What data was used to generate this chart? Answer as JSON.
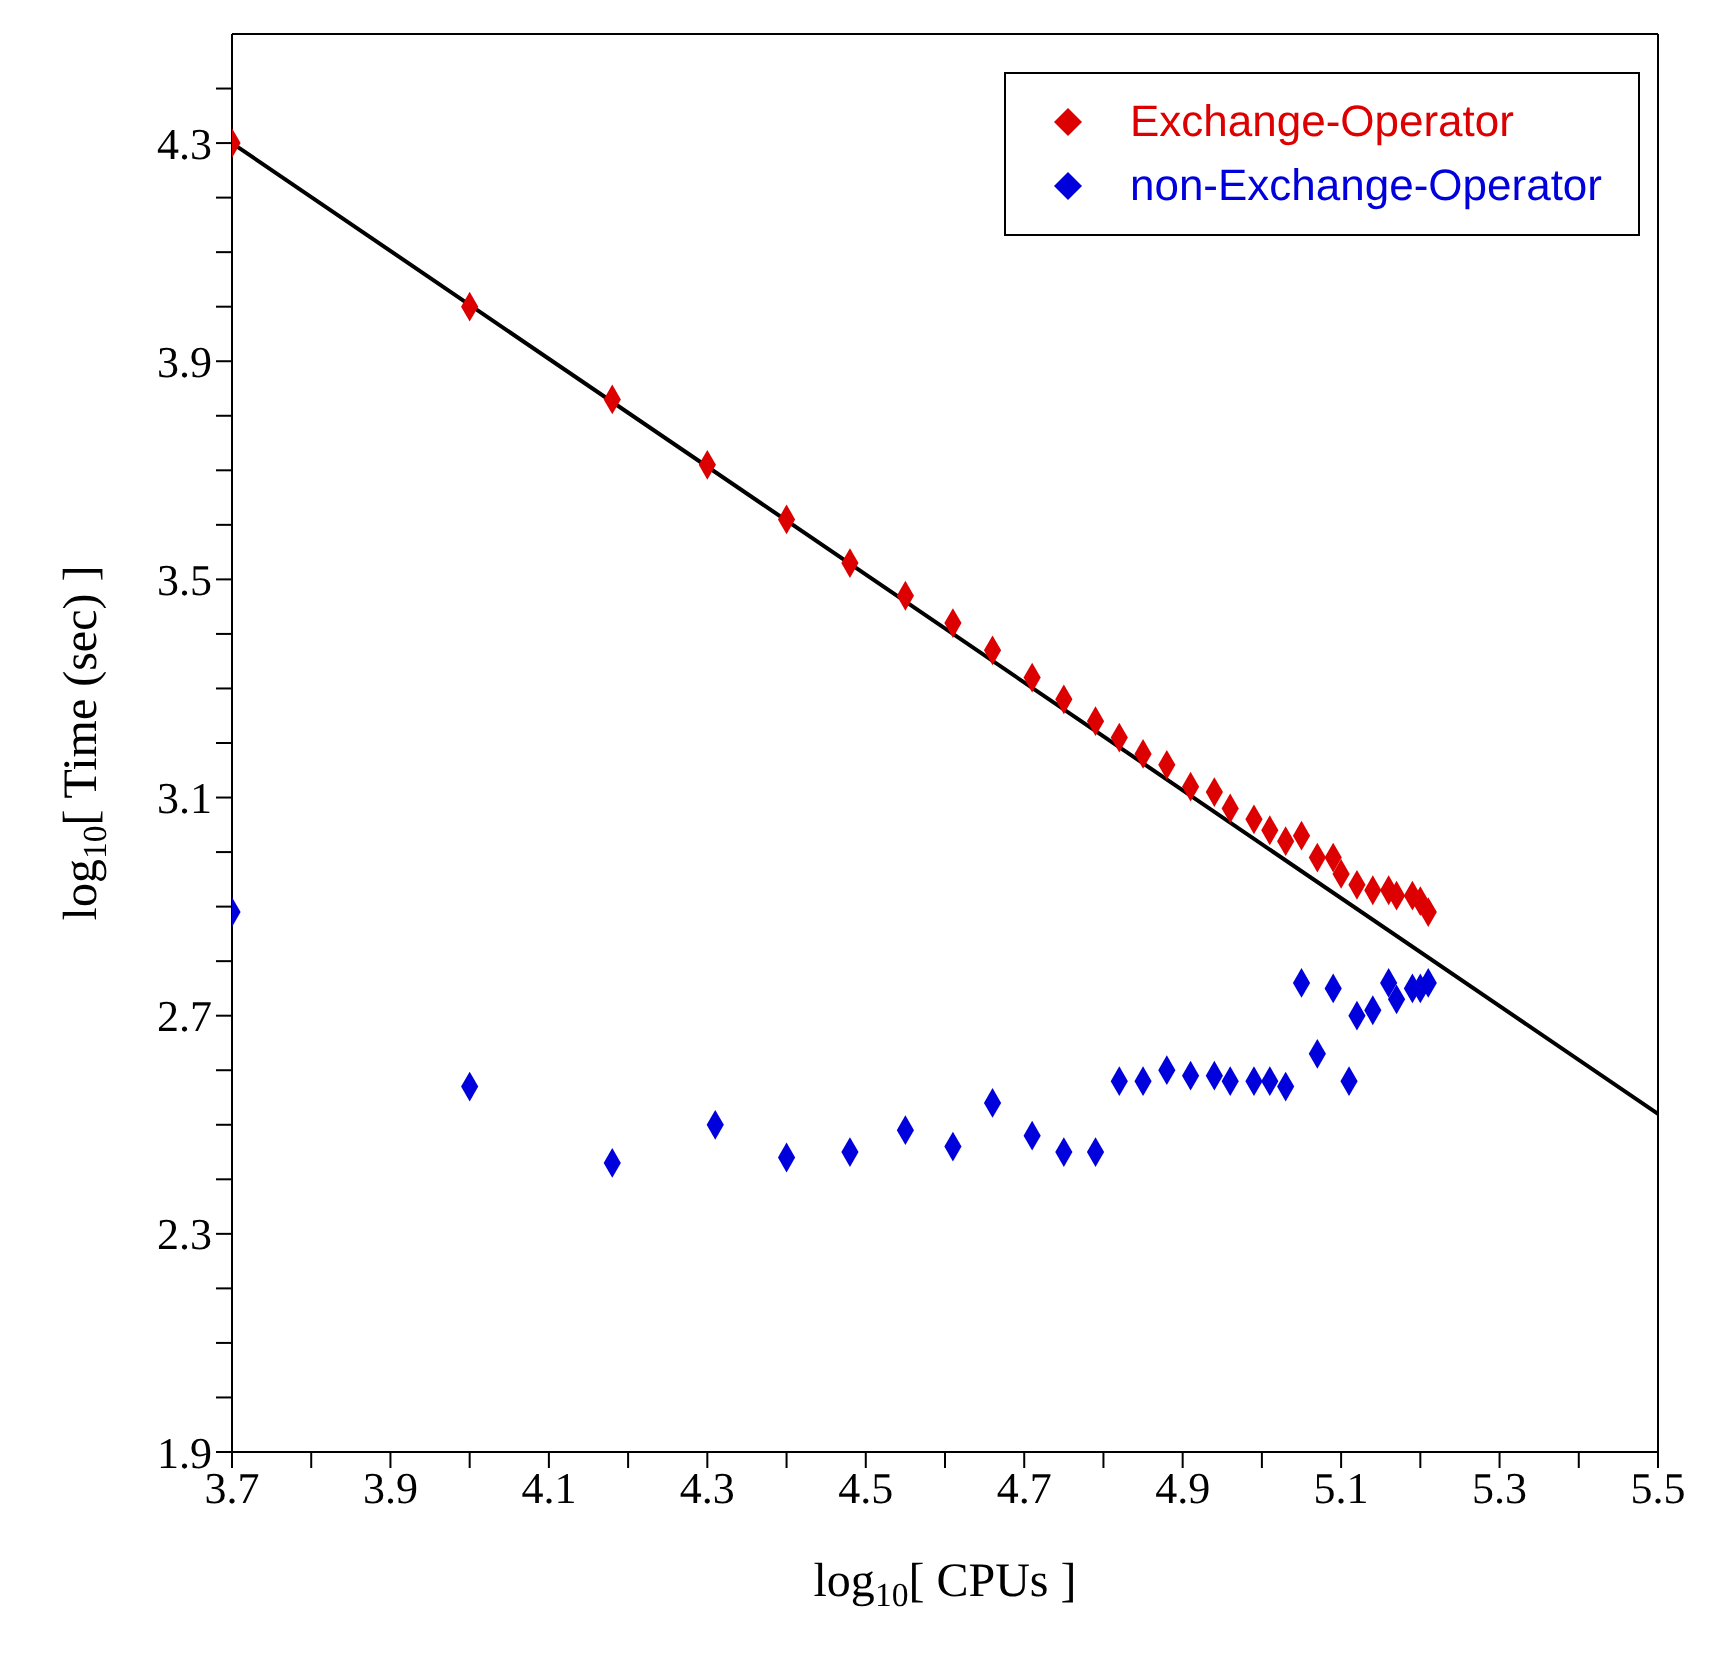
{
  "chart_data": {
    "type": "scatter",
    "xlabel": "log$_{10}$[ CPUs ]",
    "ylabel": "log$_{10}$[ Time (sec) ]",
    "xlim": [
      3.7,
      5.5
    ],
    "ylim": [
      1.9,
      4.5
    ],
    "xticks": [
      3.7,
      {
        "value": 3.8,
        "label": null
      },
      3.9,
      {
        "value": 4.0,
        "label": null
      },
      4.1,
      {
        "value": 4.2,
        "label": null
      },
      4.3,
      {
        "value": 4.4,
        "label": null
      },
      4.5,
      {
        "value": 4.6,
        "label": null
      },
      4.7,
      {
        "value": 4.8,
        "label": null
      },
      4.9,
      {
        "value": 5.0,
        "label": null
      },
      5.1,
      {
        "value": 5.2,
        "label": null
      },
      5.3,
      {
        "value": 5.4,
        "label": null
      },
      5.5
    ],
    "yticks": [
      1.9,
      {
        "value": 2.0,
        "label": null
      },
      {
        "value": 2.1,
        "label": null
      },
      {
        "value": 2.2,
        "label": null
      },
      2.3,
      {
        "value": 2.4,
        "label": null
      },
      {
        "value": 2.5,
        "label": null
      },
      {
        "value": 2.6,
        "label": null
      },
      2.7,
      {
        "value": 2.8,
        "label": null
      },
      {
        "value": 2.9,
        "label": null
      },
      {
        "value": 3.0,
        "label": null
      },
      3.1,
      {
        "value": 3.2,
        "label": null
      },
      {
        "value": 3.3,
        "label": null
      },
      {
        "value": 3.4,
        "label": null
      },
      3.5,
      {
        "value": 3.6,
        "label": null
      },
      {
        "value": 3.7,
        "label": null
      },
      {
        "value": 3.8,
        "label": null
      },
      3.9,
      {
        "value": 4.0,
        "label": null
      },
      {
        "value": 4.1,
        "label": null
      },
      {
        "value": 4.2,
        "label": null
      },
      4.3,
      {
        "value": 4.4,
        "label": null
      }
    ],
    "legend": "top right",
    "marker": "diamond",
    "series": [
      {
        "name": "Exchange-Operator",
        "color": "#dd0000",
        "x": [
          3.7,
          4.0,
          4.18,
          4.3,
          4.4,
          4.48,
          4.55,
          4.61,
          4.66,
          4.71,
          4.75,
          4.79,
          4.82,
          4.85,
          4.88,
          4.91,
          4.94,
          4.96,
          4.99,
          5.01,
          5.03,
          5.05,
          5.07,
          5.09,
          5.1,
          5.12,
          5.14,
          5.16,
          5.17,
          5.19,
          5.2,
          5.21
        ],
        "values": [
          4.3,
          4.0,
          3.83,
          3.71,
          3.61,
          3.53,
          3.47,
          3.42,
          3.37,
          3.32,
          3.28,
          3.24,
          3.21,
          3.18,
          3.16,
          3.12,
          3.11,
          3.08,
          3.06,
          3.04,
          3.02,
          3.03,
          2.99,
          2.99,
          2.96,
          2.94,
          2.93,
          2.93,
          2.92,
          2.92,
          2.91,
          2.89
        ]
      },
      {
        "name": "non-Exchange-Operator",
        "color": "#0000dd",
        "x": [
          3.7,
          4.0,
          4.18,
          4.31,
          4.4,
          4.48,
          4.55,
          4.61,
          4.66,
          4.71,
          4.75,
          4.79,
          4.82,
          4.85,
          4.88,
          4.91,
          4.94,
          4.96,
          4.99,
          5.01,
          5.03,
          5.05,
          5.07,
          5.09,
          5.11,
          5.12,
          5.14,
          5.16,
          5.17,
          5.19,
          5.2,
          5.21
        ],
        "values": [
          2.89,
          2.57,
          2.43,
          2.5,
          2.44,
          2.45,
          2.49,
          2.46,
          2.54,
          2.48,
          2.45,
          2.45,
          2.58,
          2.58,
          2.6,
          2.59,
          2.59,
          2.58,
          2.58,
          2.58,
          2.57,
          2.76,
          2.63,
          2.75,
          2.58,
          2.7,
          2.71,
          2.76,
          2.73,
          2.75,
          2.75,
          2.76
        ]
      },
      {
        "type": "line",
        "color": "#000000",
        "marker": "none",
        "x": [
          3.7,
          5.5
        ],
        "values": [
          4.3,
          2.52
        ]
      }
    ]
  }
}
